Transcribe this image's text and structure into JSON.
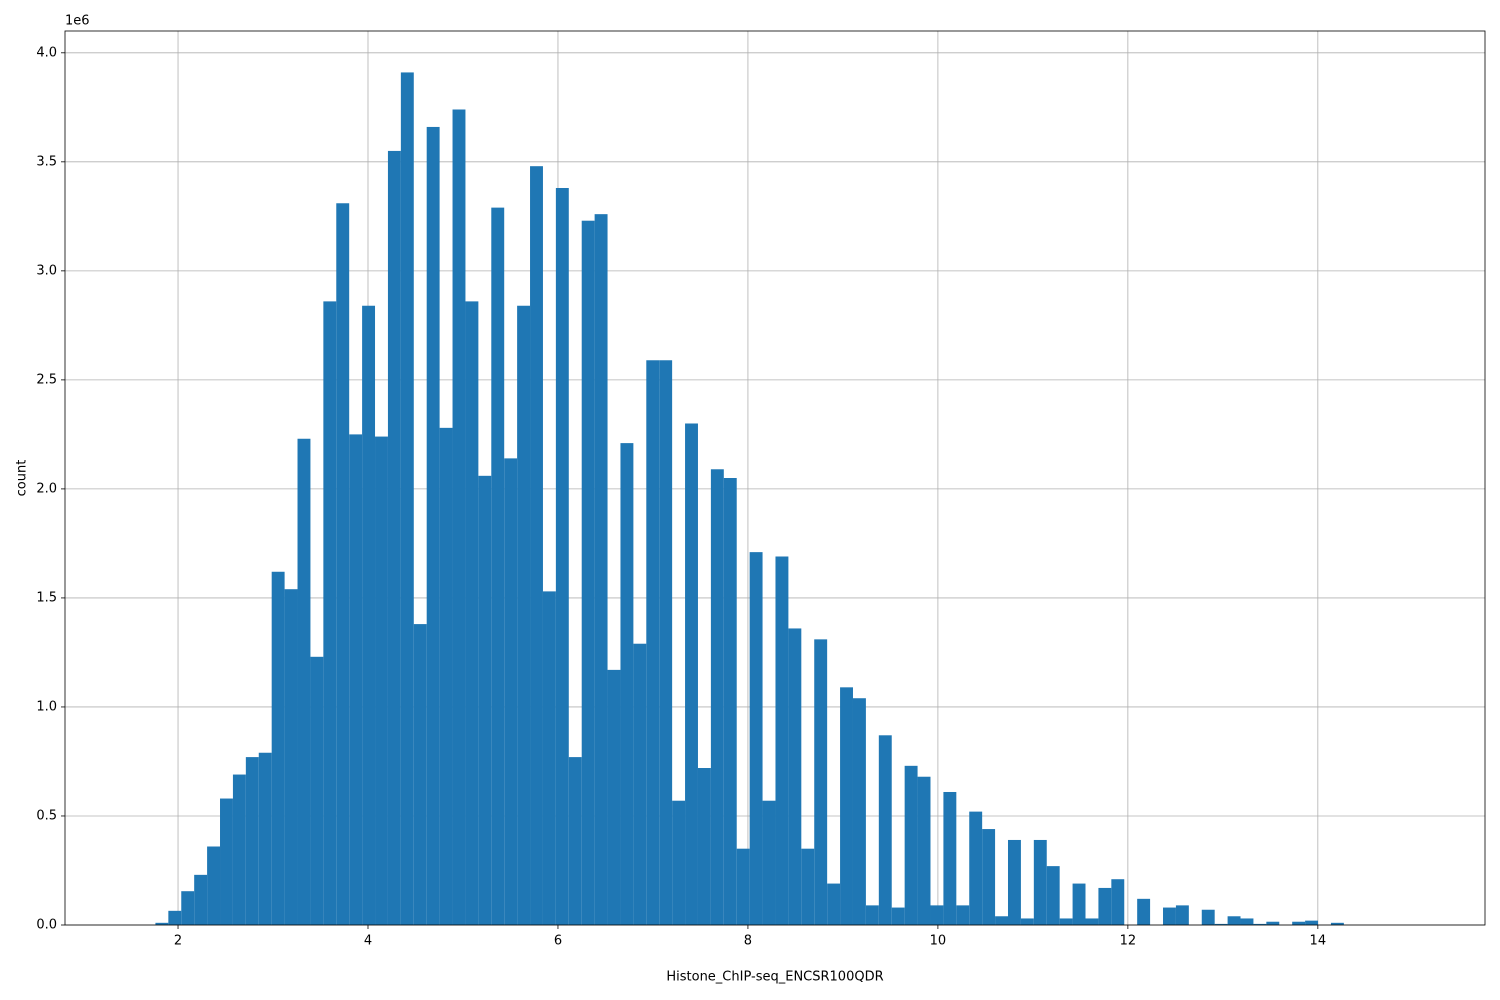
{
  "chart_data": {
    "type": "histogram",
    "x_label": "Histone_ChIP-seq_ENCSR100QDR",
    "y_label": "count",
    "y_offset_label": "1e6",
    "color": "#1f77b4",
    "grid": true,
    "bins": [
      1.49,
      1.626,
      1.762,
      1.898,
      2.034,
      2.17,
      2.306,
      2.442,
      2.578,
      2.714,
      2.85,
      2.986,
      3.122,
      3.258,
      3.394,
      3.53,
      3.666,
      3.802,
      3.938,
      4.074,
      4.21,
      4.346,
      4.482,
      4.618,
      4.754,
      4.89,
      5.026,
      5.162,
      5.298,
      5.434,
      5.57,
      5.706,
      5.842,
      5.978,
      6.114,
      6.25,
      6.386,
      6.522,
      6.658,
      6.794,
      6.93,
      7.066,
      7.202,
      7.338,
      7.474,
      7.61,
      7.746,
      7.882,
      8.018,
      8.154,
      8.29,
      8.426,
      8.562,
      8.698,
      8.834,
      8.97,
      9.106,
      9.242,
      9.378,
      9.514,
      9.65,
      9.786,
      9.922,
      10.058,
      10.194,
      10.33,
      10.466,
      10.602,
      10.738,
      10.874,
      11.01,
      11.146,
      11.282,
      11.418,
      11.554,
      11.69,
      11.826,
      11.962,
      12.098,
      12.234,
      12.37,
      12.506,
      12.642,
      12.778,
      12.914,
      13.05,
      13.186,
      13.322,
      13.458,
      13.594,
      13.73,
      13.866,
      14.002,
      14.138,
      14.274,
      14.41,
      14.546,
      14.682,
      14.818,
      14.954,
      15.09
    ],
    "values": [
      0,
      0,
      10000,
      65000,
      155000,
      230000,
      360000,
      580000,
      690000,
      770000,
      790000,
      1620000,
      1540000,
      2230000,
      1230000,
      2860000,
      3310000,
      2250000,
      2840000,
      2240000,
      3550000,
      3910000,
      1380000,
      3660000,
      2280000,
      3740000,
      2860000,
      2060000,
      3290000,
      2140000,
      2840000,
      3480000,
      1530000,
      3380000,
      770000,
      3230000,
      3260000,
      1170000,
      2210000,
      1290000,
      2590000,
      2590000,
      570000,
      2300000,
      720000,
      2090000,
      2050000,
      350000,
      1710000,
      570000,
      1690000,
      1360000,
      350000,
      1310000,
      190000,
      1090000,
      1040000,
      90000,
      870000,
      80000,
      730000,
      680000,
      90000,
      610000,
      90000,
      520000,
      440000,
      40000,
      390000,
      30000,
      390000,
      270000,
      30000,
      190000,
      30000,
      170000,
      210000,
      0,
      120000,
      0,
      80000,
      90000,
      0,
      70000,
      5000,
      40000,
      30000,
      5000,
      15000,
      0,
      15000,
      20000,
      0,
      10000,
      0,
      0,
      0,
      0,
      0,
      0
    ],
    "xlim": [
      0.81,
      15.76
    ],
    "ylim": [
      0,
      4100000
    ],
    "xticks": [
      2,
      4,
      6,
      8,
      10,
      12,
      14
    ],
    "yticks": [
      {
        "value": 0,
        "label": "0.0"
      },
      {
        "value": 500000,
        "label": "0.5"
      },
      {
        "value": 1000000,
        "label": "1.0"
      },
      {
        "value": 1500000,
        "label": "1.5"
      },
      {
        "value": 2000000,
        "label": "2.0"
      },
      {
        "value": 2500000,
        "label": "2.5"
      },
      {
        "value": 3000000,
        "label": "3.0"
      },
      {
        "value": 3500000,
        "label": "3.5"
      },
      {
        "value": 4000000,
        "label": "4.0"
      }
    ]
  }
}
